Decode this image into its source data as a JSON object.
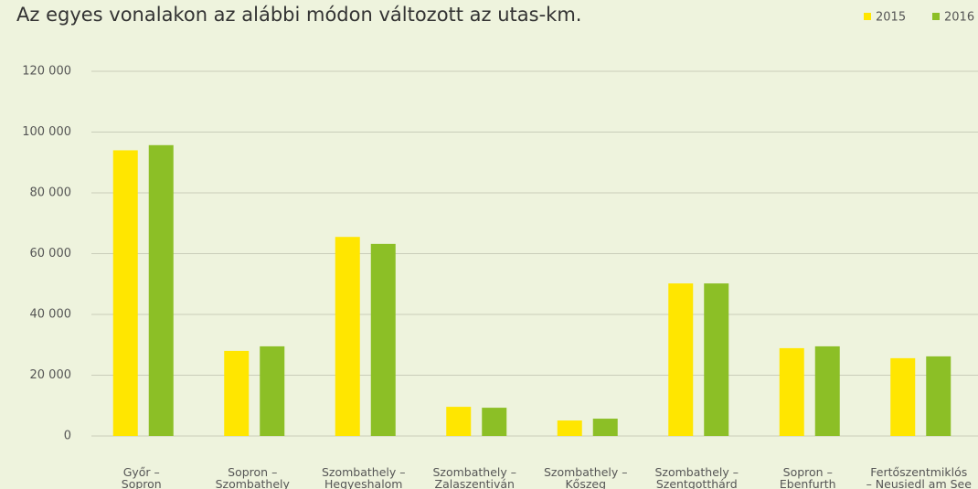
{
  "chart_data": {
    "type": "bar",
    "title": "Az egyes vonalakon az alábbi módon változott az utas-km.",
    "categories": [
      [
        "Győr –",
        "Sopron"
      ],
      [
        "Sopron –",
        "Szombathely"
      ],
      [
        "Szombathely –",
        "Hegyeshalom"
      ],
      [
        "Szombathely –",
        "Zalaszentiván"
      ],
      [
        "Szombathely –",
        "Kőszeg"
      ],
      [
        "Szombathely –",
        "Szentgotthárd"
      ],
      [
        "Sopron –",
        "Ebenfurth"
      ],
      [
        "Fertőszentmiklós",
        "– Neusiedl am See"
      ]
    ],
    "series": [
      {
        "name": "2015",
        "color": "#ffe600",
        "values": [
          94000,
          28000,
          65500,
          9600,
          5100,
          50200,
          28900,
          25600
        ]
      },
      {
        "name": "2016",
        "color": "#8cbf26",
        "values": [
          95700,
          29500,
          63200,
          9300,
          5700,
          50200,
          29500,
          26200
        ]
      }
    ],
    "ylim": [
      0,
      120000
    ],
    "yticks": [
      0,
      {
        "value": 20000,
        "label": "20 000"
      },
      {
        "value": 40000,
        "label": "40 000"
      },
      {
        "value": 60000,
        "label": "60 000"
      },
      {
        "value": 80000,
        "label": "80 000"
      },
      {
        "value": 100000,
        "label": "100 000"
      },
      {
        "value": 120000,
        "label": "120 000"
      }
    ],
    "grid": true,
    "legend": "top-right"
  }
}
